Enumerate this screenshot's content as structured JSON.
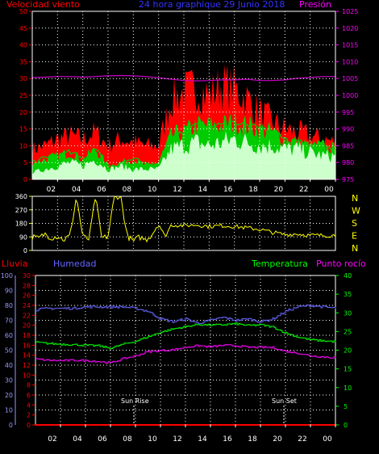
{
  "header": {
    "left": "Velocidad viento",
    "center": "24 hora graphique  29 Junio 2018",
    "right": "Presión"
  },
  "colors": {
    "wind_avg": "#ff0000",
    "wind_gust": "#00cc00",
    "wind_low": "#ccffcc",
    "pressure": "#cc00cc",
    "direction": "#ffff00",
    "humidity": "#6666ff",
    "temperature": "#00ff00",
    "dewpoint": "#ff00ff",
    "rain": "#ff0000",
    "axis_red": "#ff0000",
    "axis_magenta": "#ff00ff",
    "axis_blue": "#9999ff",
    "axis_green": "#00ff00",
    "tick_yellow": "#ffff00",
    "grid": "#ffffff",
    "direction_yellow": "#ffff00"
  },
  "x_ticks": [
    "02",
    "04",
    "06",
    "08",
    "10",
    "12",
    "14",
    "16",
    "18",
    "20",
    "22",
    "00"
  ],
  "compass": [
    "N",
    "W",
    "S",
    "E",
    "N"
  ],
  "bottom_header": {
    "rain": "Lluvia",
    "humidity": "Humedad",
    "temperature": "Temperatura",
    "dewpoint": "Punto rocío"
  },
  "annotations": {
    "sunrise": "Sun Rise",
    "sunset": "Sun Set"
  },
  "chart_data": [
    {
      "type": "area",
      "ylim": [
        0,
        50
      ],
      "yticks": [
        0,
        5,
        10,
        15,
        20,
        25,
        30,
        35,
        40,
        45,
        50
      ],
      "y2lim": [
        975,
        1025
      ],
      "y2ticks": [
        975,
        980,
        985,
        990,
        995,
        1000,
        1005,
        1010,
        1015,
        1020,
        1025
      ],
      "x": [
        0,
        1,
        2,
        3,
        4,
        5,
        6,
        7,
        8,
        9,
        10,
        11,
        12,
        13,
        14,
        15,
        16,
        17,
        18,
        19,
        20,
        21,
        22,
        23,
        24
      ],
      "series": [
        {
          "name": "wind_avg",
          "axis": "left",
          "values": [
            9,
            10,
            12,
            13,
            12,
            14,
            10,
            12,
            11,
            10,
            10,
            24,
            26,
            27,
            25,
            28,
            27,
            24,
            20,
            17,
            15,
            14,
            13,
            12,
            11
          ]
        },
        {
          "name": "wind_gust",
          "axis": "left",
          "values": [
            5,
            6,
            7,
            8,
            6,
            9,
            4,
            5,
            6,
            4,
            5,
            13,
            14,
            16,
            16,
            16,
            17,
            16,
            15,
            14,
            12,
            11,
            10,
            10,
            9
          ]
        },
        {
          "name": "wind_low",
          "axis": "left",
          "values": [
            2,
            3,
            4,
            5,
            4,
            6,
            3,
            4,
            3,
            3,
            3,
            9,
            10,
            11,
            10,
            11,
            12,
            11,
            10,
            10,
            9,
            9,
            8,
            7,
            7
          ]
        },
        {
          "name": "pressure",
          "axis": "right",
          "values": [
            1005.3,
            1005.4,
            1005.6,
            1005.6,
            1005.4,
            1005.6,
            1005.8,
            1005.9,
            1005.8,
            1005.6,
            1005.2,
            1004.8,
            1004.4,
            1004.3,
            1004.4,
            1004.6,
            1004.6,
            1004.8,
            1004.4,
            1004.4,
            1004.6,
            1005.1,
            1005.3,
            1005.6,
            1005.6
          ]
        }
      ]
    },
    {
      "type": "scatter",
      "ylim": [
        0,
        360
      ],
      "yticks": [
        0,
        90,
        180,
        270,
        360
      ],
      "x": [
        0,
        0.5,
        1,
        1.5,
        2,
        2.5,
        3,
        3.5,
        4,
        4.5,
        5,
        5.5,
        6,
        6.5,
        7,
        7.5,
        8,
        8.5,
        9,
        9.5,
        10,
        10.5,
        11,
        12,
        13,
        14,
        15,
        16,
        17,
        18,
        19,
        20,
        21,
        22,
        23,
        24
      ],
      "series": [
        {
          "name": "direction",
          "values": [
            90,
            80,
            110,
            85,
            95,
            70,
            100,
            360,
            90,
            75,
            360,
            80,
            95,
            360,
            360,
            100,
            60,
            90,
            70,
            110,
            180,
            90,
            170,
            165,
            170,
            160,
            165,
            160,
            150,
            140,
            120,
            105,
            110,
            100,
            100,
            100
          ]
        }
      ]
    },
    {
      "type": "line",
      "ylim": [
        0,
        100
      ],
      "yticks": [
        0,
        10,
        20,
        30,
        40,
        50,
        60,
        70,
        80,
        90,
        100
      ],
      "rain_ylim": [
        0,
        30
      ],
      "rain_ticks": [
        0,
        2,
        4,
        6,
        8,
        10,
        12,
        14,
        16,
        18,
        20,
        22,
        24,
        26,
        28,
        30
      ],
      "right_ylim": [
        0,
        40
      ],
      "right_ticks": [
        0,
        5,
        10,
        15,
        20,
        25,
        30,
        35,
        40
      ],
      "x": [
        0,
        1,
        2,
        3,
        4,
        5,
        6,
        7,
        8,
        9,
        10,
        11,
        12,
        13,
        14,
        15,
        16,
        17,
        18,
        19,
        20,
        21,
        22,
        23,
        24
      ],
      "series": [
        {
          "name": "rain",
          "axis": "rain",
          "values": [
            0,
            0,
            0,
            0,
            0,
            0,
            0,
            0,
            0,
            0,
            0,
            0,
            0,
            0,
            0,
            0,
            0,
            0,
            0,
            0,
            0,
            0,
            0,
            0,
            0
          ]
        },
        {
          "name": "humidity",
          "axis": "left",
          "values": [
            77,
            78,
            78,
            78,
            79,
            79,
            79,
            79,
            78,
            76,
            71,
            69,
            71,
            68,
            70,
            72,
            70,
            71,
            69,
            71,
            76,
            79,
            80,
            79,
            78
          ]
        },
        {
          "name": "temperature",
          "axis": "right",
          "values": [
            22.1,
            21.8,
            21.6,
            21.5,
            21.3,
            21.2,
            20.5,
            21.6,
            22.4,
            23.6,
            24.8,
            25.7,
            26.3,
            26.9,
            26.7,
            26.8,
            27.1,
            26.6,
            26.8,
            26.2,
            24.6,
            23.5,
            22.8,
            22.5,
            22.3
          ]
        },
        {
          "name": "dewpoint",
          "axis": "right",
          "values": [
            17.6,
            17.3,
            17.2,
            17.3,
            17.2,
            17.0,
            16.6,
            17.7,
            18.5,
            19.6,
            19.9,
            20.1,
            20.8,
            21.2,
            20.9,
            21.3,
            21.2,
            20.8,
            20.8,
            20.7,
            19.7,
            19.2,
            18.5,
            18.2,
            18.0
          ]
        }
      ]
    }
  ]
}
